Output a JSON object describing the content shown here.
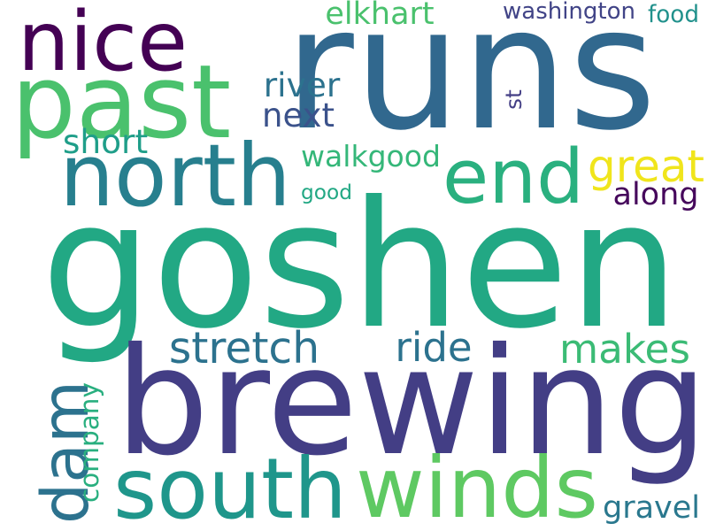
{
  "words": [
    {
      "text": "runs",
      "color": "#31688e",
      "vertical": false
    },
    {
      "text": "goshen",
      "color": "#22a884",
      "vertical": false
    },
    {
      "text": "brewing",
      "color": "#433e85",
      "vertical": false
    },
    {
      "text": "nice",
      "color": "#440154",
      "vertical": false
    },
    {
      "text": "past",
      "color": "#4ac16d",
      "vertical": false
    },
    {
      "text": "north",
      "color": "#277f8e",
      "vertical": false
    },
    {
      "text": "end",
      "color": "#2ab07f",
      "vertical": false
    },
    {
      "text": "south",
      "color": "#1f968b",
      "vertical": false
    },
    {
      "text": "winds",
      "color": "#5ec962",
      "vertical": false
    },
    {
      "text": "dam",
      "color": "#2c728e",
      "vertical": true
    },
    {
      "text": "company",
      "color": "#29af7f",
      "vertical": true
    },
    {
      "text": "stretch",
      "color": "#2c728e",
      "vertical": false
    },
    {
      "text": "ride",
      "color": "#2c728e",
      "vertical": false
    },
    {
      "text": "makes",
      "color": "#3bbb75",
      "vertical": false
    },
    {
      "text": "great",
      "color": "#f0e51c",
      "vertical": false
    },
    {
      "text": "along",
      "color": "#46085c",
      "vertical": false
    },
    {
      "text": "elkhart",
      "color": "#4ac16d",
      "vertical": false
    },
    {
      "text": "washington",
      "color": "#414487",
      "vertical": false
    },
    {
      "text": "food",
      "color": "#21918c",
      "vertical": false
    },
    {
      "text": "river",
      "color": "#2c728e",
      "vertical": false
    },
    {
      "text": "next",
      "color": "#3b528b",
      "vertical": false
    },
    {
      "text": "st",
      "color": "#433e85",
      "vertical": true
    },
    {
      "text": "short",
      "color": "#1f9e89",
      "vertical": false
    },
    {
      "text": "walkgood",
      "color": "#35b779",
      "vertical": false
    },
    {
      "text": "good",
      "color": "#22a884",
      "vertical": false
    },
    {
      "text": "gravel",
      "color": "#2a788e",
      "vertical": false
    }
  ]
}
